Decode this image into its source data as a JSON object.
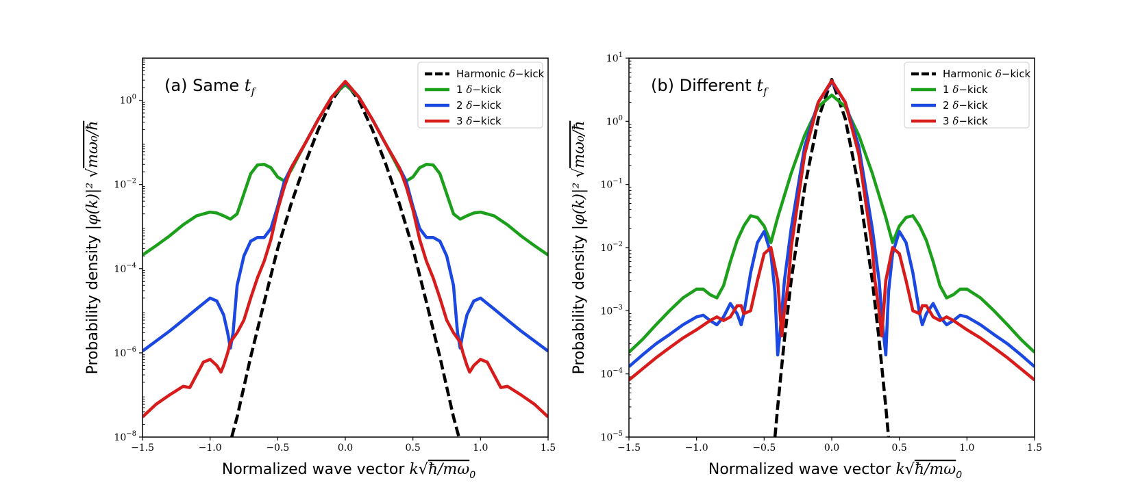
{
  "chart_data": [
    {
      "type": "line",
      "title": "(a) Same t_f",
      "title_text": "(a) Same ",
      "title_math": "t",
      "title_sub": "f",
      "xlabel": "Normalized wave vector k√(ħ/mω₀)",
      "xlabel_text": "Normalized wave vector ",
      "xlabel_math": "k",
      "xlabel_rad": "ħ/mω",
      "xlabel_sub": "0",
      "ylabel": "Probability density |φ(k)|² √(mω₀/ħ)",
      "ylabel_text": "Probability density ",
      "ylabel_math": "|φ(k)|²",
      "ylabel_rad": "mω₀/ħ",
      "yscale": "log",
      "xlim": [
        -1.5,
        1.5
      ],
      "ylim": [
        1e-08,
        10
      ],
      "xticks": [
        -1.5,
        -1.0,
        -0.5,
        0.0,
        0.5,
        1.0,
        1.5
      ],
      "xtick_labels": [
        "−1.5",
        "−1.0",
        "−0.5",
        "0.0",
        "0.5",
        "1.0",
        "1.5"
      ],
      "yticks": [
        1e-08,
        1e-06,
        0.0001,
        0.01,
        1
      ],
      "ytick_labels": [
        {
          "base": "10",
          "exp": "−8"
        },
        {
          "base": "10",
          "exp": "−6"
        },
        {
          "base": "10",
          "exp": "−4"
        },
        {
          "base": "10",
          "exp": "−2"
        },
        {
          "base": "10",
          "exp": "0"
        }
      ],
      "legend_position": "upper right",
      "series": [
        {
          "name": "Harmonic δ−kick",
          "label_prefix": "Harmonic ",
          "color": "#000000",
          "dashed": true,
          "x": [
            -0.84,
            -0.8,
            -0.7,
            -0.6,
            -0.5,
            -0.4,
            -0.3,
            -0.2,
            -0.1,
            0.0,
            0.1,
            0.2,
            0.3,
            0.4,
            0.5,
            0.6,
            0.7,
            0.8,
            0.84
          ],
          "y": [
            1e-08,
            3e-08,
            8e-07,
            1.6e-05,
            0.0003,
            0.0035,
            0.03,
            0.2,
            1.0,
            2.7,
            1.0,
            0.2,
            0.03,
            0.0035,
            0.0003,
            1.6e-05,
            8e-07,
            3e-08,
            1e-08
          ]
        },
        {
          "name": "1 δ−kick",
          "label_prefix": "1 ",
          "color": "#1ca01c",
          "dashed": false,
          "x": [
            -1.5,
            -1.4,
            -1.3,
            -1.2,
            -1.1,
            -1.0,
            -0.95,
            -0.9,
            -0.85,
            -0.8,
            -0.75,
            -0.7,
            -0.65,
            -0.6,
            -0.55,
            -0.5,
            -0.45,
            -0.4,
            -0.3,
            -0.2,
            -0.1,
            0.0,
            0.1,
            0.2,
            0.3,
            0.4,
            0.45,
            0.5,
            0.55,
            0.6,
            0.65,
            0.7,
            0.75,
            0.8,
            0.85,
            0.9,
            0.95,
            1.0,
            1.1,
            1.2,
            1.3,
            1.4,
            1.5
          ],
          "y": [
            0.00021,
            0.00035,
            0.0006,
            0.0011,
            0.0018,
            0.0022,
            0.0021,
            0.0018,
            0.0015,
            0.002,
            0.006,
            0.018,
            0.029,
            0.03,
            0.025,
            0.015,
            0.012,
            0.022,
            0.09,
            0.35,
            1.2,
            2.35,
            1.2,
            0.35,
            0.09,
            0.022,
            0.012,
            0.015,
            0.025,
            0.03,
            0.029,
            0.018,
            0.006,
            0.002,
            0.0015,
            0.0018,
            0.0021,
            0.0022,
            0.0018,
            0.0011,
            0.0006,
            0.00035,
            0.00021
          ]
        },
        {
          "name": "2 δ−kick",
          "label_prefix": "2 ",
          "color": "#1a48e0",
          "dashed": false,
          "x": [
            -1.5,
            -1.4,
            -1.3,
            -1.2,
            -1.1,
            -1.0,
            -0.95,
            -0.9,
            -0.87,
            -0.85,
            -0.83,
            -0.8,
            -0.75,
            -0.7,
            -0.65,
            -0.6,
            -0.55,
            -0.5,
            -0.45,
            -0.4,
            -0.3,
            -0.2,
            -0.1,
            0.0,
            0.1,
            0.2,
            0.3,
            0.4,
            0.45,
            0.5,
            0.55,
            0.6,
            0.65,
            0.7,
            0.75,
            0.8,
            0.83,
            0.85,
            0.87,
            0.9,
            0.95,
            1.0,
            1.1,
            1.2,
            1.3,
            1.4,
            1.5
          ],
          "y": [
            1.1e-06,
            1.9e-06,
            3.3e-06,
            6e-06,
            1.1e-05,
            2e-05,
            1.7e-05,
            8e-06,
            3e-06,
            1.3e-06,
            3e-06,
            4e-05,
            0.0002,
            0.00045,
            0.00055,
            0.00055,
            0.0009,
            0.003,
            0.012,
            0.025,
            0.09,
            0.35,
            1.2,
            2.7,
            1.2,
            0.35,
            0.09,
            0.025,
            0.012,
            0.003,
            0.0009,
            0.00055,
            0.00055,
            0.00045,
            0.0002,
            4e-05,
            3e-06,
            1.3e-06,
            3e-06,
            8e-06,
            1.7e-05,
            2e-05,
            1.1e-05,
            6e-06,
            3.3e-06,
            1.9e-06,
            1.1e-06
          ]
        },
        {
          "name": "3 δ−kick",
          "label_prefix": "3 ",
          "color": "#d81c1c",
          "dashed": false,
          "x": [
            -1.5,
            -1.4,
            -1.3,
            -1.2,
            -1.15,
            -1.1,
            -1.05,
            -1.0,
            -0.95,
            -0.92,
            -0.9,
            -0.87,
            -0.85,
            -0.8,
            -0.75,
            -0.7,
            -0.65,
            -0.6,
            -0.55,
            -0.5,
            -0.45,
            -0.4,
            -0.3,
            -0.2,
            -0.1,
            0.0,
            0.1,
            0.2,
            0.3,
            0.4,
            0.45,
            0.5,
            0.55,
            0.6,
            0.65,
            0.7,
            0.75,
            0.8,
            0.85,
            0.87,
            0.9,
            0.92,
            0.95,
            1.0,
            1.05,
            1.1,
            1.15,
            1.2,
            1.3,
            1.4,
            1.5
          ],
          "y": [
            3e-08,
            6e-08,
            1e-07,
            1.6e-07,
            1.5e-07,
            3e-07,
            6e-07,
            7e-07,
            5e-07,
            3.5e-07,
            5e-07,
            1e-06,
            1.8e-06,
            3e-06,
            6e-06,
            2e-05,
            6e-05,
            0.00015,
            0.0005,
            0.0025,
            0.009,
            0.025,
            0.09,
            0.35,
            1.2,
            2.8,
            1.2,
            0.35,
            0.09,
            0.025,
            0.009,
            0.0025,
            0.0005,
            0.00015,
            6e-05,
            2e-05,
            6e-06,
            3e-06,
            1.8e-06,
            1e-06,
            5e-07,
            3.5e-07,
            5e-07,
            7e-07,
            6e-07,
            3e-07,
            1.5e-07,
            1.6e-07,
            1e-07,
            6e-08,
            3e-08
          ]
        }
      ]
    },
    {
      "type": "line",
      "title": "(b) Different t_f",
      "title_text": "(b) Different ",
      "title_math": "t",
      "title_sub": "f",
      "xlabel": "Normalized wave vector k√(ħ/mω₀)",
      "xlabel_text": "Normalized wave vector ",
      "xlabel_math": "k",
      "xlabel_rad": "ħ/mω",
      "xlabel_sub": "0",
      "ylabel": "Probability density |φ(k)|² √(mω₀/ħ)",
      "ylabel_text": "Probability density ",
      "ylabel_math": "|φ(k)|²",
      "ylabel_rad": "mω₀/ħ",
      "yscale": "log",
      "xlim": [
        -1.5,
        1.5
      ],
      "ylim": [
        1e-05,
        10
      ],
      "xticks": [
        -1.5,
        -1.0,
        -0.5,
        0.0,
        0.5,
        1.0,
        1.5
      ],
      "xtick_labels": [
        "−1.5",
        "−1.0",
        "−0.5",
        "0.0",
        "0.5",
        "1.0",
        "1.5"
      ],
      "yticks": [
        1e-05,
        0.0001,
        0.001,
        0.01,
        0.1,
        1,
        10
      ],
      "ytick_labels": [
        {
          "base": "10",
          "exp": "−5"
        },
        {
          "base": "10",
          "exp": "−4"
        },
        {
          "base": "10",
          "exp": "−3"
        },
        {
          "base": "10",
          "exp": "−2"
        },
        {
          "base": "10",
          "exp": "−1"
        },
        {
          "base": "10",
          "exp": "0"
        },
        {
          "base": "10",
          "exp": "1"
        }
      ],
      "legend_position": "upper right",
      "series": [
        {
          "name": "Harmonic δ−kick",
          "label_prefix": "Harmonic ",
          "color": "#000000",
          "dashed": true,
          "x": [
            -0.42,
            -0.4,
            -0.35,
            -0.3,
            -0.2,
            -0.1,
            0.0,
            0.1,
            0.2,
            0.3,
            0.35,
            0.4,
            0.42
          ],
          "y": [
            1e-05,
            3e-05,
            0.00035,
            0.003,
            0.09,
            1.1,
            4.6,
            1.1,
            0.09,
            0.003,
            0.00035,
            3e-05,
            1e-05
          ]
        },
        {
          "name": "1 δ−kick",
          "label_prefix": "1 ",
          "color": "#1ca01c",
          "dashed": false,
          "x": [
            -1.5,
            -1.4,
            -1.3,
            -1.2,
            -1.1,
            -1.0,
            -0.95,
            -0.9,
            -0.85,
            -0.8,
            -0.75,
            -0.7,
            -0.65,
            -0.6,
            -0.55,
            -0.5,
            -0.45,
            -0.4,
            -0.3,
            -0.2,
            -0.1,
            0.0,
            0.1,
            0.2,
            0.3,
            0.4,
            0.45,
            0.5,
            0.55,
            0.6,
            0.65,
            0.7,
            0.75,
            0.8,
            0.85,
            0.9,
            0.95,
            1.0,
            1.1,
            1.2,
            1.3,
            1.4,
            1.5
          ],
          "y": [
            0.00022,
            0.00035,
            0.0006,
            0.001,
            0.0016,
            0.0022,
            0.0022,
            0.0018,
            0.0016,
            0.0025,
            0.006,
            0.013,
            0.022,
            0.032,
            0.03,
            0.022,
            0.012,
            0.03,
            0.15,
            0.6,
            1.7,
            2.6,
            1.7,
            0.6,
            0.15,
            0.03,
            0.012,
            0.022,
            0.03,
            0.032,
            0.022,
            0.013,
            0.006,
            0.0025,
            0.0016,
            0.0018,
            0.0022,
            0.0022,
            0.0016,
            0.001,
            0.0006,
            0.00035,
            0.00022
          ]
        },
        {
          "name": "2 δ−kick",
          "label_prefix": "2 ",
          "color": "#1a48e0",
          "dashed": false,
          "x": [
            -1.5,
            -1.4,
            -1.3,
            -1.2,
            -1.1,
            -1.0,
            -0.95,
            -0.9,
            -0.85,
            -0.8,
            -0.75,
            -0.7,
            -0.67,
            -0.65,
            -0.6,
            -0.55,
            -0.5,
            -0.45,
            -0.42,
            -0.4,
            -0.38,
            -0.35,
            -0.3,
            -0.2,
            -0.1,
            0.0,
            0.1,
            0.2,
            0.3,
            0.35,
            0.38,
            0.4,
            0.42,
            0.45,
            0.5,
            0.55,
            0.6,
            0.65,
            0.67,
            0.7,
            0.75,
            0.8,
            0.85,
            0.9,
            0.95,
            1.0,
            1.1,
            1.2,
            1.3,
            1.4,
            1.5
          ],
          "y": [
            0.00013,
            0.0002,
            0.0003,
            0.00042,
            0.0006,
            0.0008,
            0.00085,
            0.0007,
            0.0006,
            0.0008,
            0.0013,
            0.0009,
            0.0006,
            0.0009,
            0.004,
            0.012,
            0.018,
            0.008,
            0.002,
            0.0002,
            0.0005,
            0.003,
            0.02,
            0.4,
            2.0,
            4.2,
            2.0,
            0.4,
            0.02,
            0.003,
            0.0005,
            0.0002,
            0.002,
            0.008,
            0.018,
            0.012,
            0.004,
            0.0009,
            0.0006,
            0.0009,
            0.0013,
            0.0008,
            0.0006,
            0.0007,
            0.00085,
            0.0008,
            0.0006,
            0.00042,
            0.0003,
            0.0002,
            0.00013
          ]
        },
        {
          "name": "3 δ−kick",
          "label_prefix": "3 ",
          "color": "#d81c1c",
          "dashed": false,
          "x": [
            -1.5,
            -1.4,
            -1.3,
            -1.2,
            -1.1,
            -1.0,
            -0.9,
            -0.85,
            -0.8,
            -0.75,
            -0.7,
            -0.67,
            -0.65,
            -0.6,
            -0.55,
            -0.5,
            -0.45,
            -0.4,
            -0.37,
            -0.35,
            -0.32,
            -0.3,
            -0.2,
            -0.1,
            0.0,
            0.1,
            0.2,
            0.3,
            0.32,
            0.35,
            0.37,
            0.4,
            0.45,
            0.5,
            0.55,
            0.6,
            0.65,
            0.67,
            0.7,
            0.75,
            0.8,
            0.85,
            0.9,
            1.0,
            1.1,
            1.2,
            1.3,
            1.4,
            1.5
          ],
          "y": [
            8e-05,
            0.00012,
            0.00018,
            0.00026,
            0.00037,
            0.0005,
            0.0007,
            0.0008,
            0.0007,
            0.0008,
            0.0012,
            0.0012,
            0.0009,
            0.001,
            0.003,
            0.008,
            0.01,
            0.003,
            0.0004,
            0.001,
            0.003,
            0.01,
            0.3,
            2.0,
            4.4,
            2.0,
            0.3,
            0.01,
            0.003,
            0.001,
            0.0004,
            0.003,
            0.01,
            0.008,
            0.003,
            0.001,
            0.0009,
            0.0012,
            0.0012,
            0.0008,
            0.0007,
            0.0008,
            0.0007,
            0.0005,
            0.00037,
            0.00026,
            0.00018,
            0.00012,
            8e-05
          ]
        }
      ]
    }
  ]
}
